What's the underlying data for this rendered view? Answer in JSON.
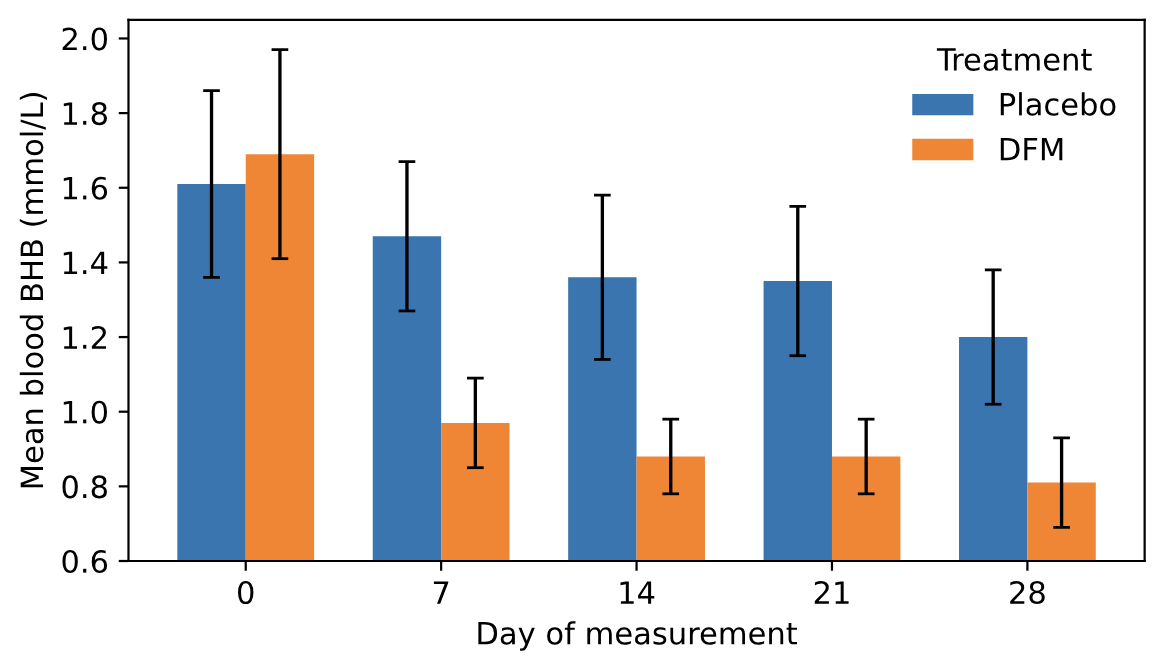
{
  "chart_data": {
    "type": "bar",
    "xlabel": "Day of measurement",
    "ylabel": "Mean blood BHB (mmol/L)",
    "legend_title": "Treatment",
    "categories": [
      "0",
      "7",
      "14",
      "21",
      "28"
    ],
    "series": [
      {
        "name": "Placebo",
        "color": "#3a75af",
        "values": [
          1.61,
          1.47,
          1.36,
          1.35,
          1.2
        ],
        "errors": [
          [
            1.36,
            1.86
          ],
          [
            1.27,
            1.67
          ],
          [
            1.14,
            1.58
          ],
          [
            1.15,
            1.55
          ],
          [
            1.02,
            1.38
          ]
        ]
      },
      {
        "name": "DFM",
        "color": "#ef8636",
        "values": [
          1.69,
          0.97,
          0.88,
          0.88,
          0.81
        ],
        "errors": [
          [
            1.41,
            1.97
          ],
          [
            0.85,
            1.09
          ],
          [
            0.78,
            0.98
          ],
          [
            0.78,
            0.98
          ],
          [
            0.69,
            0.93
          ]
        ]
      }
    ],
    "ylim": [
      0.6,
      2.05
    ],
    "yticks": [
      {
        "value": 0.6,
        "label": "0.6"
      },
      {
        "value": 0.8,
        "label": "0.8"
      },
      {
        "value": 1.0,
        "label": "1.0"
      },
      {
        "value": 1.2,
        "label": "1.2"
      },
      {
        "value": 1.4,
        "label": "1.4"
      },
      {
        "value": 1.6,
        "label": "1.6"
      },
      {
        "value": 1.8,
        "label": "1.8"
      },
      {
        "value": 2.0,
        "label": "2.0"
      }
    ],
    "legend": "top right",
    "grid": false
  }
}
